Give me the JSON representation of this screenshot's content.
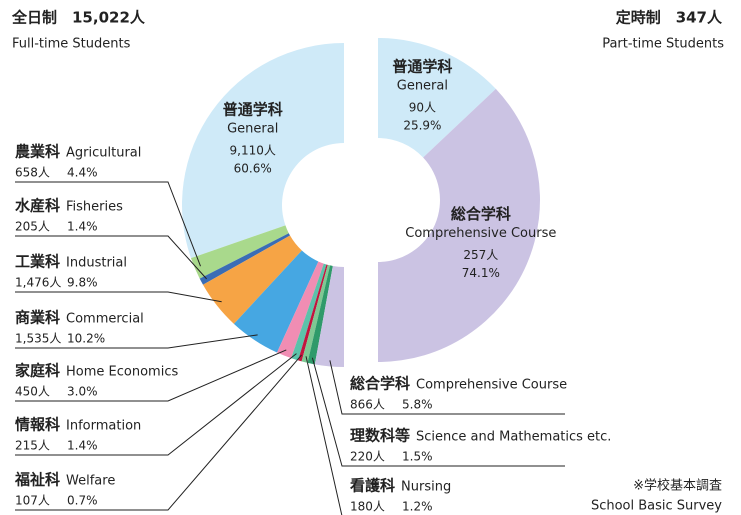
{
  "chart_data": [
    {
      "type": "donut-half",
      "title": "全日制　15,022人",
      "subtitle": "Full-time Students",
      "categories": [
        "普通学科",
        "農業科",
        "水産科",
        "工業科",
        "商業科",
        "家庭科",
        "情報科",
        "福祉科",
        "看護科",
        "理数科等",
        "総合学科"
      ],
      "categories_en": [
        "General",
        "Agricultural",
        "Fisheries",
        "Industrial",
        "Commercial",
        "Home Economics",
        "Information",
        "Welfare",
        "Nursing",
        "Science and Mathematics etc.",
        "Comprehensive Course"
      ],
      "values": [
        9110,
        658,
        205,
        1476,
        1535,
        450,
        215,
        107,
        180,
        220,
        866
      ],
      "value_labels": [
        "9,110人",
        "658人",
        "205人",
        "1,476人",
        "1,535人",
        "450人",
        "215人",
        "107人",
        "180人",
        "220人",
        "866人"
      ],
      "percents": [
        60.6,
        4.4,
        1.4,
        9.8,
        10.2,
        3.0,
        1.4,
        0.7,
        1.2,
        1.5,
        5.8
      ],
      "percent_labels": [
        "60.6%",
        "4.4%",
        "1.4%",
        "9.8%",
        "10.2%",
        "3.0%",
        "1.4%",
        "0.7%",
        "1.2%",
        "1.5%",
        "5.8%"
      ],
      "colors": [
        "#cfeaf8",
        "#a9d98c",
        "#3a6db5",
        "#f6a445",
        "#46a7e2",
        "#f08db3",
        "#5cc2aa",
        "#c2143e",
        "#7fc893",
        "#2f9a6a",
        "#cbc3e3"
      ]
    },
    {
      "type": "donut-half",
      "title": "定時制　347人",
      "subtitle": "Part-time Students",
      "categories": [
        "普通学科",
        "総合学科"
      ],
      "categories_en": [
        "General",
        "Comprehensive Course"
      ],
      "values": [
        90,
        257
      ],
      "value_labels": [
        "90人",
        "257人"
      ],
      "percents": [
        25.9,
        74.1
      ],
      "percent_labels": [
        "25.9%",
        "74.1%"
      ],
      "colors": [
        "#cfeaf8",
        "#cbc3e3"
      ]
    }
  ],
  "footnote": {
    "ja": "※学校基本調査",
    "en": "School Basic Survey"
  }
}
